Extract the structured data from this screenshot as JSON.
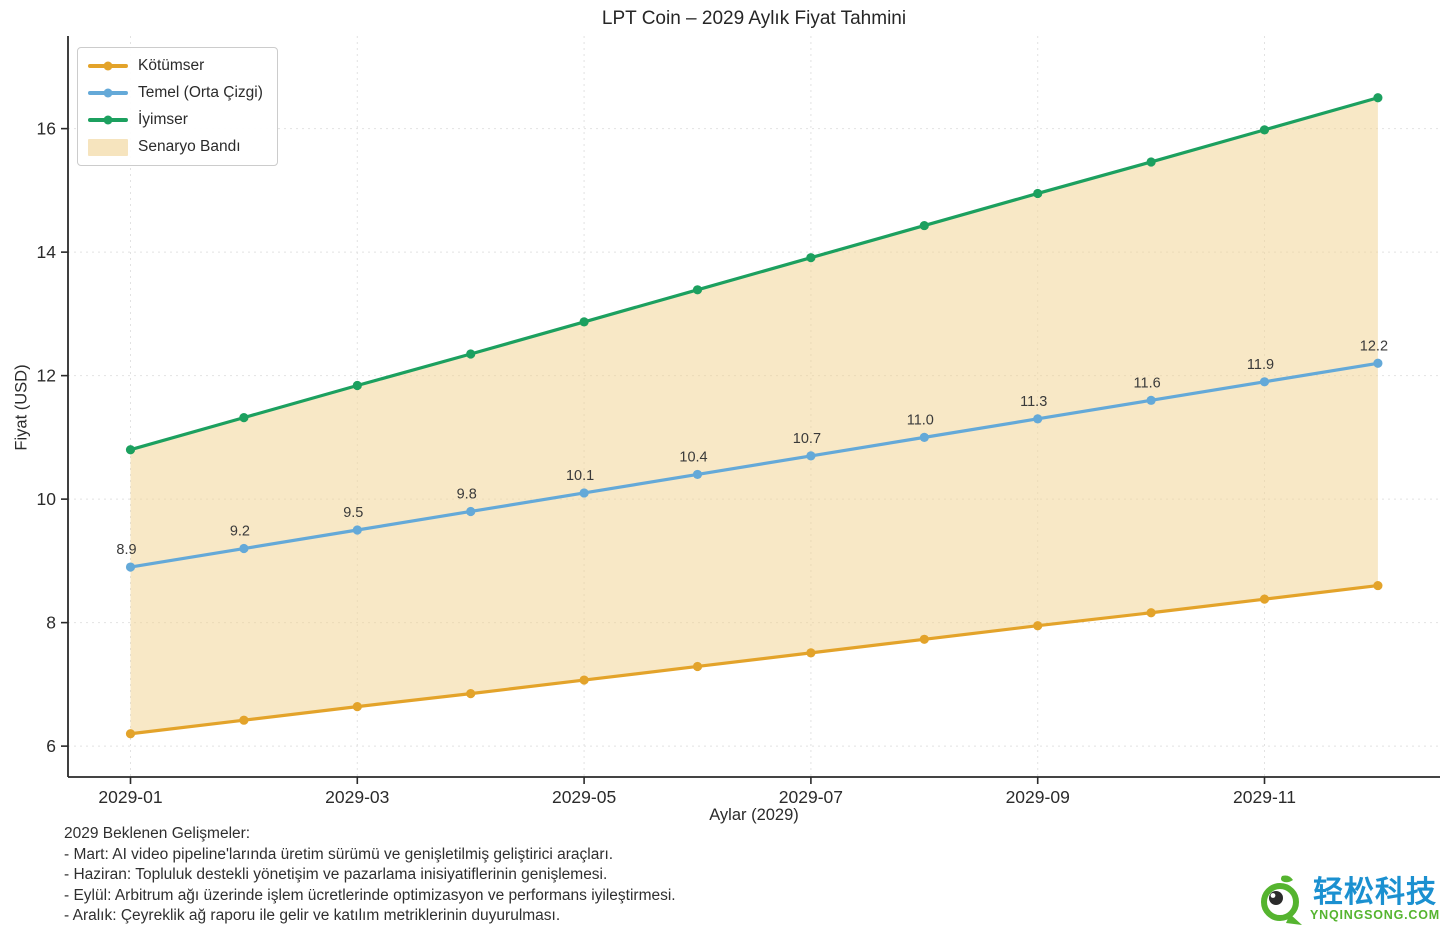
{
  "title": "LPT Coin – 2029 Aylık Fiyat Tahmini",
  "chart_data": {
    "type": "line",
    "title": "LPT Coin – 2029 Aylık Fiyat Tahmini",
    "xlabel": "Aylar (2029)",
    "ylabel": "Fiyat (USD)",
    "x": [
      "2029-01",
      "2029-02",
      "2029-03",
      "2029-04",
      "2029-05",
      "2029-06",
      "2029-07",
      "2029-08",
      "2029-09",
      "2029-10",
      "2029-11",
      "2029-12"
    ],
    "xtick_labels": [
      "2029-01",
      "2029-03",
      "2029-05",
      "2029-07",
      "2029-09",
      "2029-11"
    ],
    "xtick_indices": [
      0,
      2,
      4,
      6,
      8,
      10
    ],
    "yticks": [
      6,
      8,
      10,
      12,
      14,
      16
    ],
    "ylim": [
      5.5,
      17.5
    ],
    "grid": true,
    "legend_position": "upper-left",
    "series": [
      {
        "name": "Kötümser",
        "color": "#E3A32A",
        "point_labels": false,
        "values": [
          6.2,
          6.42,
          6.64,
          6.85,
          7.07,
          7.29,
          7.51,
          7.73,
          7.95,
          8.16,
          8.38,
          8.6
        ]
      },
      {
        "name": "Temel (Orta Çizgi)",
        "color": "#64A9D8",
        "point_labels": true,
        "values": [
          8.9,
          9.2,
          9.5,
          9.8,
          10.1,
          10.4,
          10.7,
          11.0,
          11.3,
          11.6,
          11.9,
          12.2
        ]
      },
      {
        "name": "İyimser",
        "color": "#1CA05F",
        "point_labels": false,
        "values": [
          10.8,
          11.32,
          11.84,
          12.35,
          12.87,
          13.39,
          13.91,
          14.43,
          14.95,
          15.46,
          15.98,
          16.5
        ]
      }
    ],
    "band": {
      "name": "Senaryo Bandı",
      "lower_series": "Kötümser",
      "upper_series": "İyimser",
      "fill_color": "rgba(243,213,152,0.55)",
      "legend_swatch_color": "#F6E4BE"
    },
    "grid_color": "#e2e2e2",
    "spine_color": "#2a2a2a"
  },
  "annotation": {
    "lines": [
      "2029 Beklenen Gelişmeler:",
      "- Mart: AI video pipeline'larında üretim sürümü ve genişletilmiş geliştirici araçları.",
      "- Haziran: Topluluk destekli yönetişim ve pazarlama inisiyatiflerinin genişlemesi.",
      "- Eylül: Arbitrum ağı üzerinde işlem ücretlerinde optimizasyon ve performans iyileştirmesi.",
      "- Aralık: Çeyreklik ağ raporu ile gelir ve katılım metriklerinin duyurulması."
    ]
  },
  "logo": {
    "brand": "轻松科技",
    "domain": "YNQINGSONG.COM",
    "brand_color": "#1B90D0",
    "accent_color": "#55B42F"
  }
}
